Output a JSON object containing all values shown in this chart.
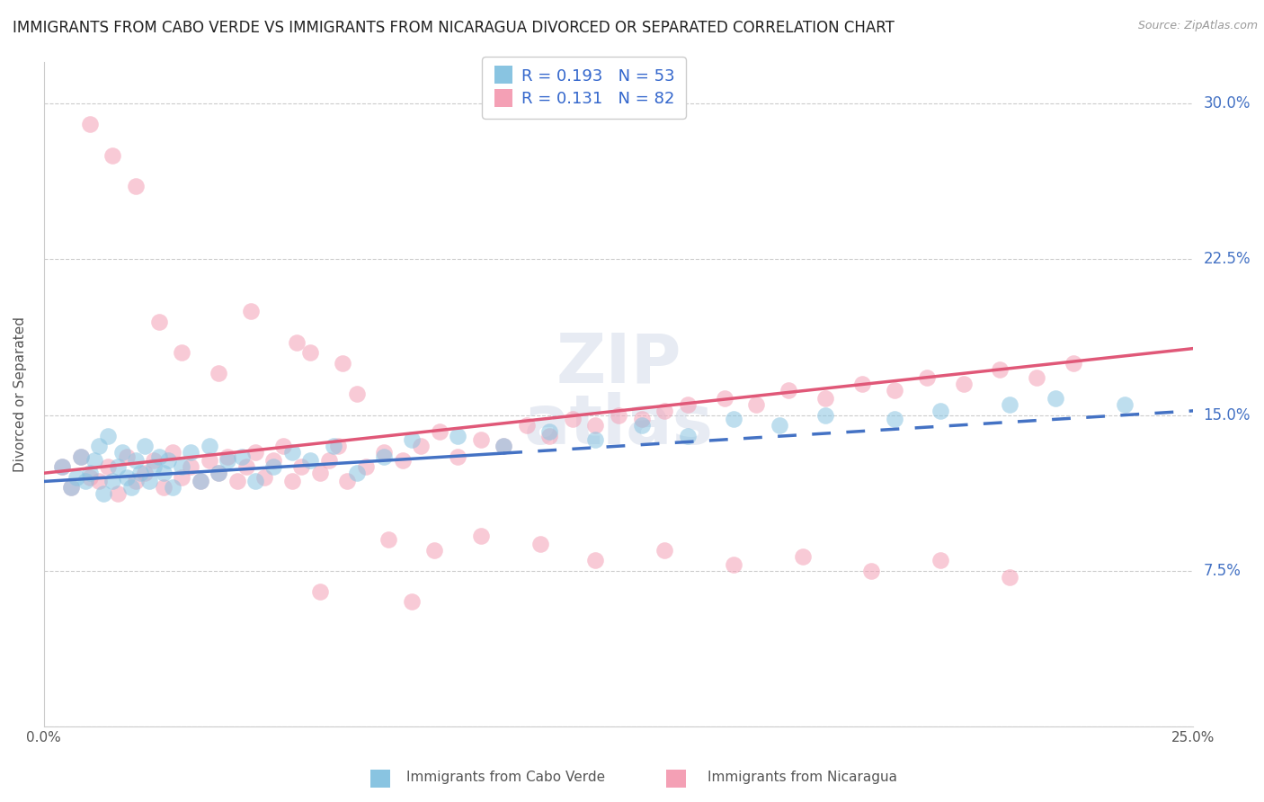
{
  "title": "IMMIGRANTS FROM CABO VERDE VS IMMIGRANTS FROM NICARAGUA DIVORCED OR SEPARATED CORRELATION CHART",
  "source": "Source: ZipAtlas.com",
  "ylabel": "Divorced or Separated",
  "legend_label1": "Immigrants from Cabo Verde",
  "legend_label2": "Immigrants from Nicaragua",
  "R1": 0.193,
  "N1": 53,
  "R2": 0.131,
  "N2": 82,
  "color_blue": "#89c4e1",
  "color_pink": "#f4a0b5",
  "color_line_blue": "#4472c4",
  "color_line_pink": "#e05878",
  "xlim": [
    0.0,
    0.25
  ],
  "ylim": [
    0.0,
    0.32
  ],
  "x_ticks": [
    0.0,
    0.05,
    0.1,
    0.15,
    0.2,
    0.25
  ],
  "x_tick_labels": [
    "0.0%",
    "",
    "",
    "",
    "",
    "25.0%"
  ],
  "y_ticks": [
    0.0,
    0.075,
    0.15,
    0.225,
    0.3
  ],
  "y_tick_labels": [
    "",
    "7.5%",
    "15.0%",
    "22.5%",
    "30.0%"
  ],
  "watermark": "ZIPAtlas",
  "cabo_verde_x": [
    0.004,
    0.006,
    0.007,
    0.008,
    0.009,
    0.01,
    0.011,
    0.012,
    0.013,
    0.014,
    0.015,
    0.016,
    0.017,
    0.018,
    0.019,
    0.02,
    0.021,
    0.022,
    0.023,
    0.024,
    0.025,
    0.026,
    0.027,
    0.028,
    0.03,
    0.032,
    0.034,
    0.036,
    0.038,
    0.04,
    0.043,
    0.046,
    0.05,
    0.054,
    0.058,
    0.063,
    0.068,
    0.074,
    0.08,
    0.09,
    0.1,
    0.11,
    0.12,
    0.13,
    0.14,
    0.15,
    0.16,
    0.17,
    0.185,
    0.195,
    0.21,
    0.22,
    0.235
  ],
  "cabo_verde_y": [
    0.125,
    0.115,
    0.12,
    0.13,
    0.118,
    0.122,
    0.128,
    0.135,
    0.112,
    0.14,
    0.118,
    0.125,
    0.132,
    0.12,
    0.115,
    0.128,
    0.122,
    0.135,
    0.118,
    0.125,
    0.13,
    0.122,
    0.128,
    0.115,
    0.125,
    0.132,
    0.118,
    0.135,
    0.122,
    0.128,
    0.13,
    0.118,
    0.125,
    0.132,
    0.128,
    0.135,
    0.122,
    0.13,
    0.138,
    0.14,
    0.135,
    0.142,
    0.138,
    0.145,
    0.14,
    0.148,
    0.145,
    0.15,
    0.148,
    0.152,
    0.155,
    0.158,
    0.155
  ],
  "nicaragua_x": [
    0.004,
    0.006,
    0.008,
    0.01,
    0.012,
    0.014,
    0.016,
    0.018,
    0.02,
    0.022,
    0.024,
    0.026,
    0.028,
    0.03,
    0.032,
    0.034,
    0.036,
    0.038,
    0.04,
    0.042,
    0.044,
    0.046,
    0.048,
    0.05,
    0.052,
    0.054,
    0.056,
    0.058,
    0.06,
    0.062,
    0.064,
    0.066,
    0.068,
    0.07,
    0.074,
    0.078,
    0.082,
    0.086,
    0.09,
    0.095,
    0.1,
    0.105,
    0.11,
    0.115,
    0.12,
    0.125,
    0.13,
    0.135,
    0.14,
    0.148,
    0.155,
    0.162,
    0.17,
    0.178,
    0.185,
    0.192,
    0.2,
    0.208,
    0.216,
    0.224,
    0.01,
    0.015,
    0.02,
    0.025,
    0.03,
    0.038,
    0.045,
    0.055,
    0.065,
    0.075,
    0.085,
    0.095,
    0.108,
    0.12,
    0.135,
    0.15,
    0.165,
    0.18,
    0.195,
    0.21,
    0.06,
    0.08
  ],
  "nicaragua_y": [
    0.125,
    0.115,
    0.13,
    0.12,
    0.118,
    0.125,
    0.112,
    0.13,
    0.118,
    0.122,
    0.128,
    0.115,
    0.132,
    0.12,
    0.125,
    0.118,
    0.128,
    0.122,
    0.13,
    0.118,
    0.125,
    0.132,
    0.12,
    0.128,
    0.135,
    0.118,
    0.125,
    0.18,
    0.122,
    0.128,
    0.135,
    0.118,
    0.16,
    0.125,
    0.132,
    0.128,
    0.135,
    0.142,
    0.13,
    0.138,
    0.135,
    0.145,
    0.14,
    0.148,
    0.145,
    0.15,
    0.148,
    0.152,
    0.155,
    0.158,
    0.155,
    0.162,
    0.158,
    0.165,
    0.162,
    0.168,
    0.165,
    0.172,
    0.168,
    0.175,
    0.29,
    0.275,
    0.26,
    0.195,
    0.18,
    0.17,
    0.2,
    0.185,
    0.175,
    0.09,
    0.085,
    0.092,
    0.088,
    0.08,
    0.085,
    0.078,
    0.082,
    0.075,
    0.08,
    0.072,
    0.065,
    0.06
  ]
}
